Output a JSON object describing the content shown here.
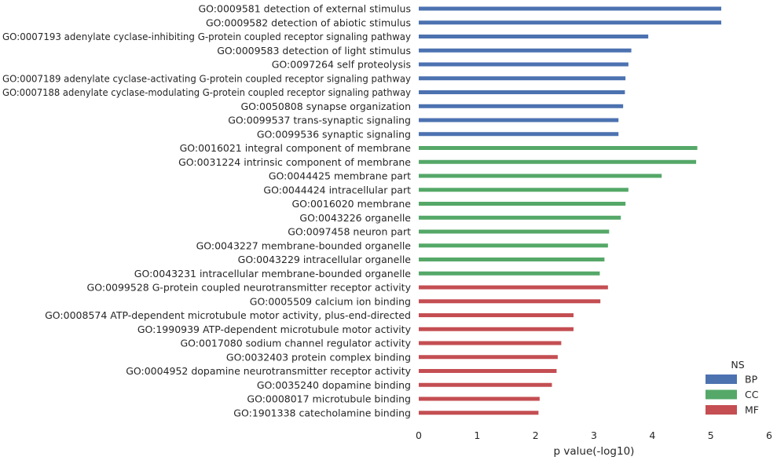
{
  "chart_data": {
    "type": "bar",
    "orientation": "horizontal",
    "xlabel": "p value(-log10)",
    "ylabel": "",
    "xlim": [
      0,
      6
    ],
    "xticks": [
      "0",
      "1",
      "2",
      "3",
      "4",
      "5",
      "6"
    ],
    "grid": false,
    "legend": {
      "title": "NS",
      "placement": "bottom-right",
      "entries": [
        {
          "name": "BP",
          "color": "#4c72b0"
        },
        {
          "name": "CC",
          "color": "#55a868"
        },
        {
          "name": "MF",
          "color": "#c44e52"
        }
      ]
    },
    "categories": [
      "GO:0009581 detection of external stimulus",
      "GO:0009582 detection of abiotic stimulus",
      "GO:0007193 adenylate cyclase-inhibiting G-protein coupled receptor signaling pathway",
      "GO:0009583 detection of light stimulus",
      "GO:0097264 self proteolysis",
      "GO:0007189 adenylate cyclase-activating G-protein coupled receptor signaling pathway",
      "GO:0007188 adenylate cyclase-modulating G-protein coupled receptor signaling pathway",
      "GO:0050808 synapse organization",
      "GO:0099537 trans-synaptic signaling",
      "GO:0099536 synaptic signaling",
      "GO:0016021 integral component of membrane",
      "GO:0031224 intrinsic component of membrane",
      "GO:0044425 membrane part",
      "GO:0044424 intracellular part",
      "GO:0016020 membrane",
      "GO:0043226 organelle",
      "GO:0097458 neuron part",
      "GO:0043227 membrane-bounded organelle",
      "GO:0043229 intracellular organelle",
      "GO:0043231 intracellular membrane-bounded organelle",
      "GO:0099528 G-protein coupled neurotransmitter receptor activity",
      "GO:0005509 calcium ion binding",
      "GO:0008574 ATP-dependent microtubule motor activity, plus-end-directed",
      "GO:1990939 ATP-dependent microtubule motor activity",
      "GO:0017080 sodium channel regulator activity",
      "GO:0032403 protein complex binding",
      "GO:0004952 dopamine neurotransmitter receptor activity",
      "GO:0035240 dopamine binding",
      "GO:0008017 microtubule binding",
      "GO:1901338 catecholamine binding"
    ],
    "groups": [
      "BP",
      "BP",
      "BP",
      "BP",
      "BP",
      "BP",
      "BP",
      "BP",
      "BP",
      "BP",
      "CC",
      "CC",
      "CC",
      "CC",
      "CC",
      "CC",
      "CC",
      "CC",
      "CC",
      "CC",
      "MF",
      "MF",
      "MF",
      "MF",
      "MF",
      "MF",
      "MF",
      "MF",
      "MF",
      "MF"
    ],
    "values": [
      5.18,
      5.18,
      3.93,
      3.64,
      3.59,
      3.54,
      3.53,
      3.5,
      3.42,
      3.42,
      4.77,
      4.75,
      4.16,
      3.59,
      3.54,
      3.46,
      3.26,
      3.24,
      3.18,
      3.1,
      3.24,
      3.11,
      2.65,
      2.65,
      2.44,
      2.38,
      2.36,
      2.28,
      2.07,
      2.05
    ]
  }
}
